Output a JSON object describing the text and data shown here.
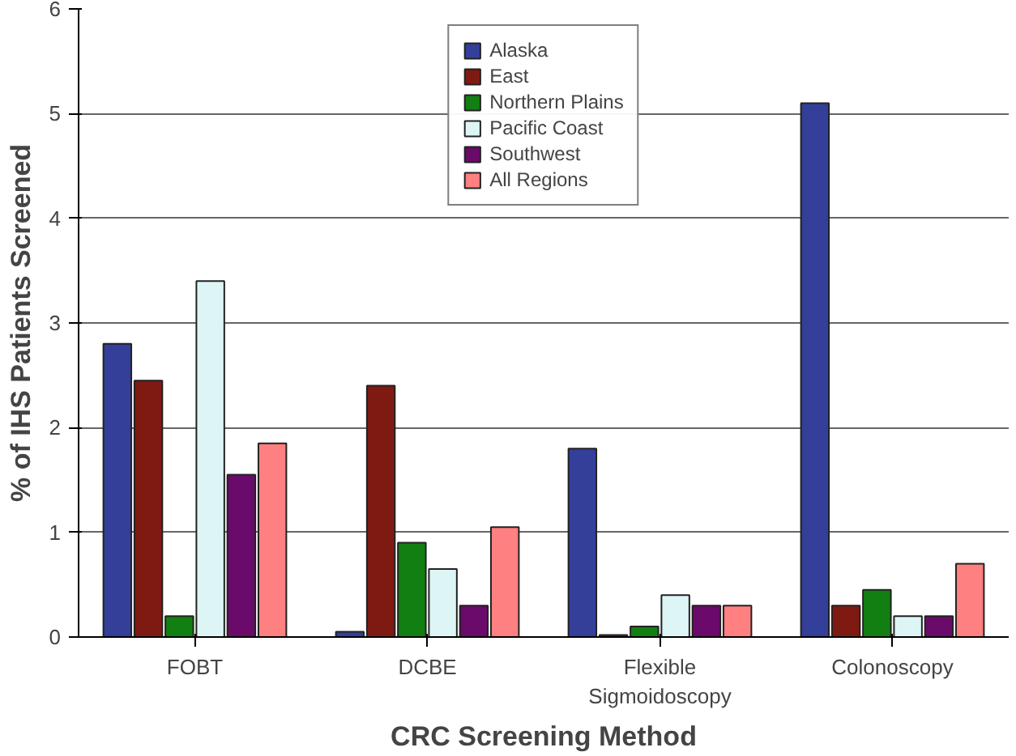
{
  "chart_data": {
    "type": "bar",
    "xlabel": "CRC Screening Method",
    "ylabel": "% of IHS Patients Screened",
    "categories": [
      "FOBT",
      "DCBE",
      "Flexible Sigmoidoscopy",
      "Colonoscopy"
    ],
    "series": [
      {
        "name": "Alaska",
        "color": "#333f99",
        "values": [
          2.8,
          0.05,
          1.8,
          5.1
        ]
      },
      {
        "name": "East",
        "color": "#7f1a13",
        "values": [
          2.45,
          2.4,
          0.02,
          0.3
        ]
      },
      {
        "name": "Northern Plains",
        "color": "#127f12",
        "values": [
          0.2,
          0.9,
          0.1,
          0.45
        ]
      },
      {
        "name": "Pacific Coast",
        "color": "#ddf5f5",
        "values": [
          3.4,
          0.65,
          0.4,
          0.2
        ]
      },
      {
        "name": "Southwest",
        "color": "#6a0a6a",
        "values": [
          1.55,
          0.3,
          0.3,
          0.2
        ]
      },
      {
        "name": "All Regions",
        "color": "#ff8080",
        "values": [
          1.85,
          1.05,
          0.3,
          0.7
        ]
      }
    ],
    "ylim": [
      0,
      6
    ],
    "yticks": [
      0,
      1,
      2,
      3,
      4,
      5,
      6
    ],
    "grid": "y",
    "legend": "top"
  }
}
